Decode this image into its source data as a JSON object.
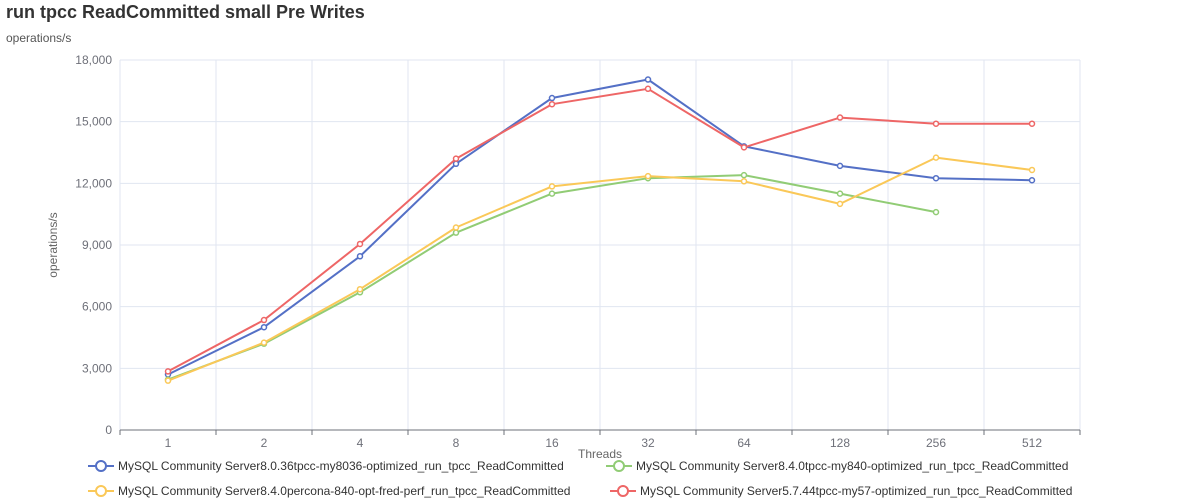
{
  "chart_data": {
    "type": "line",
    "title": "run tpcc ReadCommitted small Pre Writes",
    "subtitle": "operations/s",
    "xlabel": "Threads",
    "ylabel": "operations/s",
    "categories": [
      "1",
      "2",
      "4",
      "8",
      "16",
      "32",
      "64",
      "128",
      "256",
      "512"
    ],
    "ylim": [
      0,
      18000
    ],
    "yticks": [
      "0",
      "3,000",
      "6,000",
      "9,000",
      "12,000",
      "15,000",
      "18,000"
    ],
    "grid": true,
    "legend_position": "bottom",
    "series": [
      {
        "name": "MySQL Community Server8.0.36tpcc-my8036-optimized_run_tpcc_ReadCommitted",
        "color": "#5470c6",
        "values": [
          2700,
          5000,
          8450,
          12950,
          16150,
          17050,
          13800,
          12850,
          12250,
          12150
        ]
      },
      {
        "name": "MySQL Community Server8.4.0tpcc-my840-optimized_run_tpcc_ReadCommitted",
        "color": "#91cc75",
        "values": [
          2450,
          4200,
          6700,
          9600,
          11500,
          12250,
          12400,
          11500,
          10600,
          null
        ]
      },
      {
        "name": "MySQL Community Server8.4.0percona-840-opt-fred-perf_run_tpcc_ReadCommitted",
        "color": "#fac858",
        "values": [
          2400,
          4250,
          6850,
          9850,
          11850,
          12350,
          12100,
          11000,
          13250,
          12650
        ]
      },
      {
        "name": "MySQL Community Server5.7.44tpcc-my57-optimized_run_tpcc_ReadCommitted",
        "color": "#ee6666",
        "values": [
          2850,
          5350,
          9050,
          13200,
          15850,
          16600,
          13750,
          15200,
          14900,
          14900
        ]
      }
    ]
  }
}
